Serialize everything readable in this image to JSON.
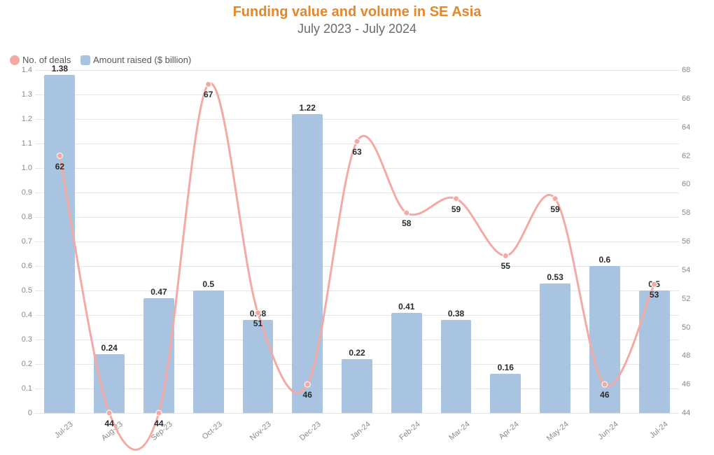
{
  "title": "Funding value and volume in SE Asia",
  "subtitle": "July 2023 - July 2024",
  "legend": {
    "deals": {
      "label": "No. of deals",
      "color": "#f4a9a4"
    },
    "amount": {
      "label": "Amount raised ($ billion)",
      "color": "#a9c4e0"
    }
  },
  "chart": {
    "type": "bar+line",
    "background_color": "#ffffff",
    "grid_color": "#e6e6e6",
    "font_family": "Segoe UI",
    "title_fontsize": 20,
    "title_color": "#e6862b",
    "subtitle_fontsize": 18,
    "subtitle_color": "#6a6a6a",
    "axis_label_color": "#888888",
    "data_label_color": "#2a2a2a",
    "data_label_fontsize": 12,
    "categories": [
      "Jul-23",
      "Aug-23",
      "Sep-23",
      "Oct-23",
      "Nov-23",
      "Dec-23",
      "Jan-24",
      "Feb-24",
      "Mar-24",
      "Apr-24",
      "May-24",
      "Jun-24",
      "Jul-24"
    ],
    "bar": {
      "color": "#a9c4e0",
      "width_ratio": 0.62,
      "values": [
        1.38,
        0.24,
        0.47,
        0.5,
        0.38,
        1.22,
        0.22,
        0.41,
        0.38,
        0.16,
        0.53,
        0.6,
        0.5
      ],
      "label_offset_y": -16
    },
    "line": {
      "color": "#f4a9a4",
      "stroke_width": 3,
      "marker_radius": 4,
      "marker_fill": "#f4a9a4",
      "marker_stroke": "#ffffff",
      "values": [
        62,
        44,
        44,
        67,
        51,
        46,
        63,
        58,
        59,
        55,
        59,
        46,
        53
      ],
      "label_offset_y": 14,
      "label_offset_y_special": {
        "0": 14,
        "3": 14,
        "6": 14,
        "12": 14
      }
    },
    "left_axis": {
      "min": 0,
      "max": 1.4,
      "step": 0.1,
      "label_decimals": 1
    },
    "right_axis": {
      "min": 44,
      "max": 68,
      "step": 2
    }
  }
}
